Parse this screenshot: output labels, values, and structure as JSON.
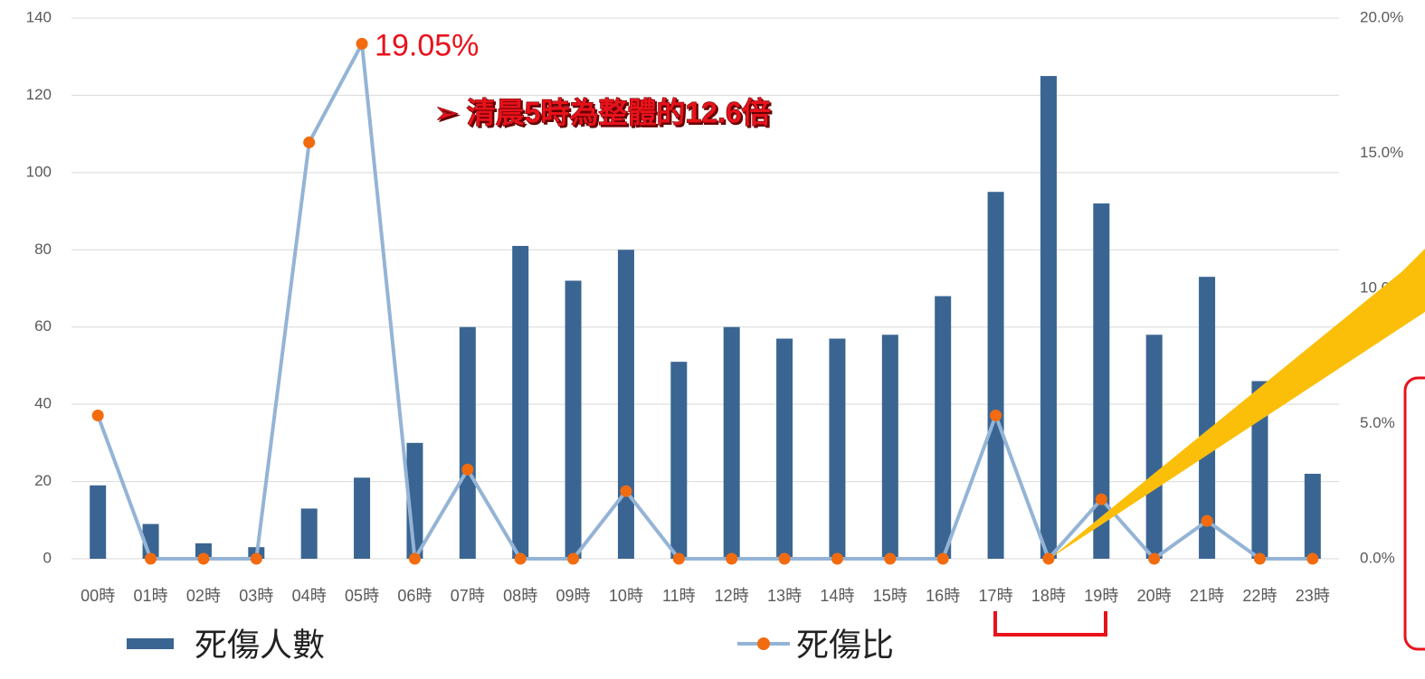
{
  "chart_data": {
    "type": "bar",
    "categories": [
      "00時",
      "01時",
      "02時",
      "03時",
      "04時",
      "05時",
      "06時",
      "07時",
      "08時",
      "09時",
      "10時",
      "11時",
      "12時",
      "13時",
      "14時",
      "15時",
      "16時",
      "17時",
      "18時",
      "19時",
      "20時",
      "21時",
      "22時",
      "23時"
    ],
    "series": [
      {
        "name": "死傷人數",
        "type": "bar",
        "color": "#3a6592",
        "values": [
          19,
          9,
          4,
          3,
          13,
          21,
          30,
          60,
          81,
          72,
          80,
          51,
          60,
          57,
          57,
          58,
          68,
          95,
          125,
          92,
          58,
          73,
          46,
          22
        ]
      },
      {
        "name": "死傷比",
        "type": "line",
        "axis": "y2",
        "color": "#94b4d6",
        "marker_color": "#f26b0f",
        "values": [
          5.3,
          0,
          0,
          0,
          15.4,
          19.05,
          0,
          3.3,
          0,
          0,
          2.5,
          0,
          0,
          0,
          0,
          0,
          0,
          5.3,
          0,
          2.2,
          0,
          1.4,
          0,
          0
        ],
        "value_labels": [
          null,
          null,
          null,
          null,
          null,
          "19.05%",
          null,
          null,
          null,
          null,
          null,
          null,
          null,
          null,
          null,
          null,
          null,
          null,
          null,
          null,
          null,
          null,
          null,
          null
        ]
      }
    ],
    "ylim": [
      0,
      140
    ],
    "yticks": [
      0,
      20,
      40,
      60,
      80,
      100,
      120,
      140
    ],
    "y2lim": [
      0,
      20
    ],
    "y2ticks": [
      {
        "value": 0,
        "label": "0.0%"
      },
      {
        "value": 5,
        "label": "5.0%"
      },
      {
        "value": 10,
        "label": "10.0%"
      },
      {
        "value": 15,
        "label": "15.0%"
      },
      {
        "value": 20,
        "label": "20.0%"
      }
    ],
    "grid": true,
    "legend": "bottom",
    "annotation": "➢  清晨5時為整體的12.6倍"
  }
}
